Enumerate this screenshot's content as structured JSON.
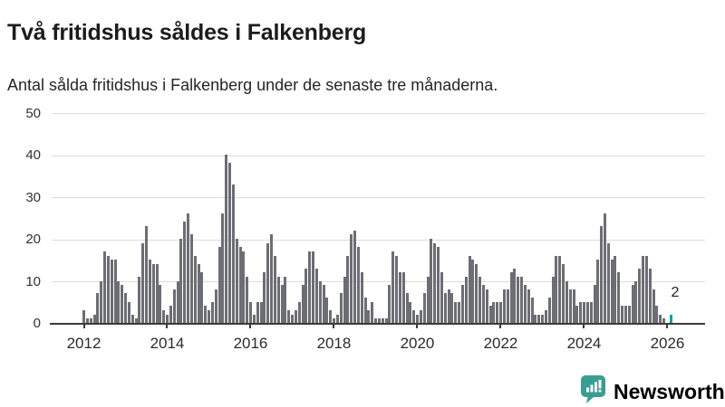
{
  "header": {
    "title": "Två fritidshus såldes i Falkenberg",
    "subtitle": "Antal sålda fritidshus i Falkenberg under de senaste tre månaderna."
  },
  "chart_data": {
    "type": "bar",
    "title": "Två fritidshus såldes i Falkenberg",
    "subtitle": "Antal sålda fritidshus i Falkenberg under de senaste tre månaderna.",
    "x_start_month": "2012-01",
    "x_end_month": "2026-02",
    "x_interval": "monthly",
    "x_tick_labels": [
      "2012",
      "2014",
      "2016",
      "2018",
      "2020",
      "2022",
      "2024",
      "2026"
    ],
    "y_ticks": [
      0,
      10,
      20,
      30,
      40,
      50
    ],
    "ylim": [
      0,
      50
    ],
    "grid": "horizontal",
    "values": [
      3,
      1,
      1,
      2,
      7,
      10,
      17,
      16,
      15,
      15,
      10,
      9,
      7,
      5,
      2,
      1,
      11,
      19,
      23,
      15,
      14,
      14,
      9,
      3,
      2,
      4,
      8,
      10,
      20,
      24,
      26,
      21,
      16,
      14,
      12,
      4,
      3,
      5,
      8,
      18,
      26,
      40,
      38,
      33,
      20,
      18,
      17,
      11,
      5,
      2,
      5,
      5,
      12,
      19,
      21,
      16,
      11,
      9,
      11,
      3,
      2,
      3,
      5,
      9,
      13,
      17,
      17,
      13,
      10,
      9,
      6,
      3,
      1,
      2,
      7,
      11,
      16,
      21,
      22,
      18,
      12,
      6,
      3,
      5,
      1,
      1,
      1,
      1,
      9,
      17,
      16,
      12,
      12,
      7,
      5,
      3,
      2,
      3,
      7,
      11,
      20,
      19,
      18,
      12,
      7,
      8,
      7,
      5,
      5,
      9,
      11,
      16,
      15,
      14,
      11,
      9,
      8,
      4,
      5,
      5,
      5,
      8,
      8,
      12,
      13,
      11,
      11,
      9,
      8,
      6,
      2,
      2,
      2,
      3,
      6,
      11,
      16,
      16,
      14,
      10,
      8,
      8,
      4,
      5,
      5,
      5,
      5,
      9,
      15,
      23,
      26,
      19,
      15,
      16,
      12,
      4,
      4,
      4,
      9,
      10,
      13,
      16,
      16,
      13,
      8,
      4,
      2,
      1,
      0,
      2
    ],
    "highlight_index": 169,
    "highlight_value_label": "2",
    "colors": {
      "bar": "#6d6d74",
      "highlight": "#11a0a0",
      "gridline": "#dcdcdc",
      "axis": "#3a3a3a"
    }
  },
  "footer": {
    "brand": "Newsworthy",
    "logo_icon": "bar-chart-speech-bubble",
    "brand_color": "#3a9d92"
  }
}
